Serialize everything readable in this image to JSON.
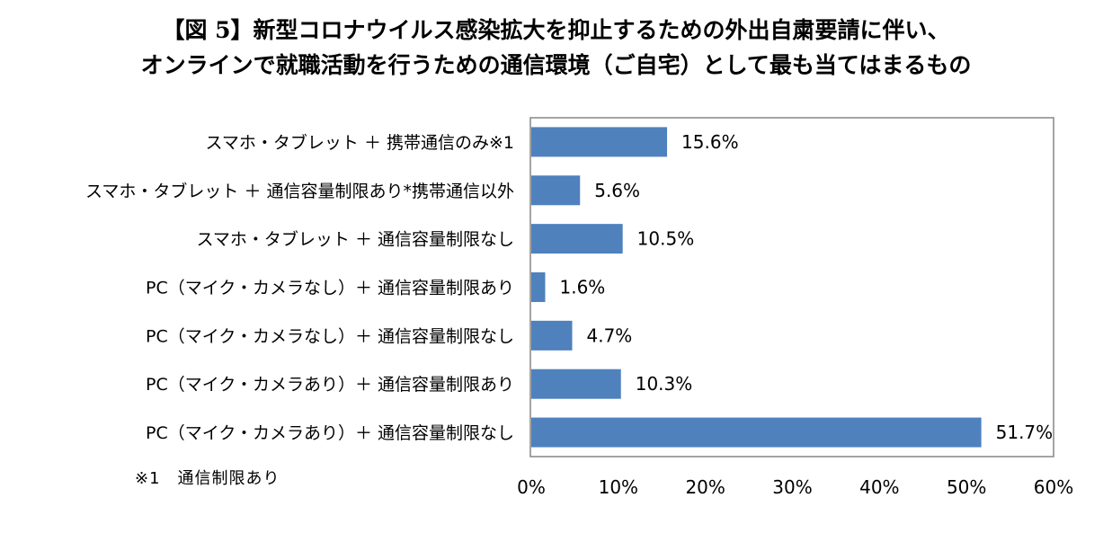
{
  "title": {
    "line1": "【図 5】新型コロナウイルス感染拡大を抑止するための外出自粛要請に伴い、",
    "line2": "オンラインで就職活動を行うための通信環境（ご自宅）として最も当てはまるもの"
  },
  "footnote": "※1　通信制限あり",
  "chart_data": {
    "type": "bar",
    "orientation": "horizontal",
    "categories": [
      "スマホ・タブレット ＋ 携帯通信のみ※1",
      "スマホ・タブレット ＋ 通信容量制限あり*携帯通信以外",
      "スマホ・タブレット ＋ 通信容量制限なし",
      "PC（マイク・カメラなし）＋ 通信容量制限あり",
      "PC（マイク・カメラなし）＋ 通信容量制限なし",
      "PC（マイク・カメラあり）＋ 通信容量制限あり",
      "PC（マイク・カメラあり）＋ 通信容量制限なし"
    ],
    "values": [
      15.6,
      5.6,
      10.5,
      1.6,
      4.7,
      10.3,
      51.7
    ],
    "value_labels": [
      "15.6%",
      "5.6%",
      "10.5%",
      "1.6%",
      "4.7%",
      "10.3%",
      "51.7%"
    ],
    "x_ticks": [
      "0%",
      "10%",
      "20%",
      "30%",
      "40%",
      "50%",
      "60%"
    ],
    "xlim": [
      0,
      60
    ],
    "grid": false,
    "bar_color": "#4f81bd"
  }
}
